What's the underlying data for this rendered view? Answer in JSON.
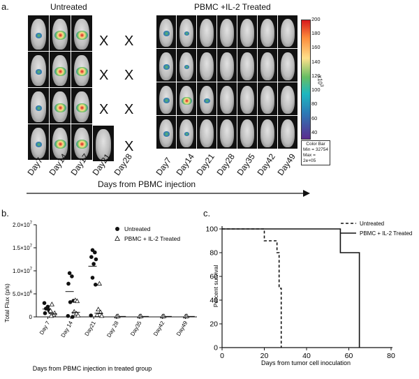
{
  "panels": {
    "a_letter": "a.",
    "b_letter": "b.",
    "c_letter": "c."
  },
  "panel_a": {
    "untreated_title": "Untreated",
    "treated_title": "PBMC +IL-2 Treated",
    "untreated_days": [
      "Day7",
      "Day14",
      "Day17",
      "Day21",
      "Day28"
    ],
    "treated_days": [
      "Day7",
      "Day14",
      "Day21",
      "Day28",
      "Day35",
      "Day42",
      "Day49"
    ],
    "x_mark": "X",
    "arrow_label": "Days from PBMC injection",
    "colorbar": {
      "ticks": [
        "200",
        "180",
        "160",
        "140",
        "120",
        "100",
        "80",
        "60",
        "40"
      ],
      "exponent": "x10",
      "exponent_power": "3",
      "legend_title": "Color Bar",
      "legend_min": "Min = 32754",
      "legend_max": "Max = 2e+05"
    }
  },
  "chart_data": [
    {
      "type": "scatter",
      "panel": "b",
      "ylabel": "Total Flux (p/s)",
      "xlabel": "Days from PBMC injection in treated group",
      "categories": [
        "Day 7",
        "Day 14",
        "Day21",
        "Day 28",
        "Day35",
        "Day42",
        "Day49"
      ],
      "yticks": [
        {
          "value": 0,
          "label": "0"
        },
        {
          "value": 5000000,
          "label": "5.0×10",
          "exp": "6"
        },
        {
          "value": 10000000,
          "label": "1.0×10",
          "exp": "7"
        },
        {
          "value": 15000000,
          "label": "1.5×10",
          "exp": "7"
        },
        {
          "value": 20000000,
          "label": "2.0×10",
          "exp": "7"
        }
      ],
      "ylim": [
        0,
        20000000
      ],
      "legend_position": "top-right",
      "series": [
        {
          "name": "Untreated",
          "marker": "filled-circle",
          "points": [
            {
              "cat": 0,
              "offset": -0.15,
              "y": 3000000
            },
            {
              "cat": 0,
              "offset": -0.08,
              "y": 1800000
            },
            {
              "cat": 0,
              "offset": 0.0,
              "y": 2200000
            },
            {
              "cat": 0,
              "offset": 0.08,
              "y": 1200000
            },
            {
              "cat": 0,
              "offset": -0.12,
              "y": 800000
            },
            {
              "cat": 0,
              "offset": 0.05,
              "y": 1500000
            },
            {
              "cat": 1,
              "offset": -0.05,
              "y": 9500000
            },
            {
              "cat": 1,
              "offset": 0.05,
              "y": 8800000
            },
            {
              "cat": 1,
              "offset": -0.1,
              "y": 7200000
            },
            {
              "cat": 1,
              "offset": 0.12,
              "y": 3500000
            },
            {
              "cat": 1,
              "offset": -0.02,
              "y": 3200000
            },
            {
              "cat": 1,
              "offset": -0.12,
              "y": 200000
            },
            {
              "cat": 1,
              "offset": 0.08,
              "y": 0
            },
            {
              "cat": 2,
              "offset": -0.05,
              "y": 14500000
            },
            {
              "cat": 2,
              "offset": 0.05,
              "y": 14000000
            },
            {
              "cat": 2,
              "offset": -0.1,
              "y": 13000000
            },
            {
              "cat": 2,
              "offset": 0.1,
              "y": 12500000
            },
            {
              "cat": 2,
              "offset": 0.0,
              "y": 11500000
            },
            {
              "cat": 2,
              "offset": -0.05,
              "y": 8500000
            },
            {
              "cat": 2,
              "offset": 0.08,
              "y": 7000000
            },
            {
              "cat": 2,
              "offset": -0.12,
              "y": 300000
            }
          ],
          "medians": [
            {
              "cat": 0,
              "y": 1700000
            },
            {
              "cat": 1,
              "y": 5500000
            },
            {
              "cat": 2,
              "y": 11000000
            }
          ]
        },
        {
          "name": "PBMC + IL-2 Treated",
          "marker": "open-triangle",
          "points": [
            {
              "cat": 0,
              "offset": 0.18,
              "y": 2700000
            },
            {
              "cat": 0,
              "offset": 0.12,
              "y": 1300000
            },
            {
              "cat": 0,
              "offset": 0.2,
              "y": 600000
            },
            {
              "cat": 0,
              "offset": 0.26,
              "y": 400000
            },
            {
              "cat": 0,
              "offset": 0.15,
              "y": 200000
            },
            {
              "cat": 0,
              "offset": 0.3,
              "y": 800000
            },
            {
              "cat": 1,
              "offset": 0.2,
              "y": 3600000
            },
            {
              "cat": 1,
              "offset": 0.28,
              "y": 3400000
            },
            {
              "cat": 1,
              "offset": 0.15,
              "y": 1100000
            },
            {
              "cat": 1,
              "offset": 0.25,
              "y": 700000
            },
            {
              "cat": 1,
              "offset": 0.32,
              "y": 300000
            },
            {
              "cat": 2,
              "offset": 0.25,
              "y": 7200000
            },
            {
              "cat": 2,
              "offset": 0.2,
              "y": 1600000
            },
            {
              "cat": 2,
              "offset": 0.3,
              "y": 1000000
            },
            {
              "cat": 2,
              "offset": 0.15,
              "y": 400000
            },
            {
              "cat": 2,
              "offset": 0.35,
              "y": 200000
            },
            {
              "cat": 3,
              "offset": 0.0,
              "y": 100000
            },
            {
              "cat": 3,
              "offset": 0.06,
              "y": 150000
            },
            {
              "cat": 4,
              "offset": 0.0,
              "y": 100000
            },
            {
              "cat": 4,
              "offset": 0.06,
              "y": 150000
            },
            {
              "cat": 5,
              "offset": 0.0,
              "y": 100000
            },
            {
              "cat": 5,
              "offset": 0.06,
              "y": 150000
            },
            {
              "cat": 6,
              "offset": 0.0,
              "y": 100000
            },
            {
              "cat": 6,
              "offset": 0.06,
              "y": 150000
            }
          ],
          "medians": [
            {
              "cat": 0,
              "y": 700000
            },
            {
              "cat": 1,
              "y": 1000000
            },
            {
              "cat": 2,
              "y": 800000
            },
            {
              "cat": 3,
              "y": 100000
            },
            {
              "cat": 4,
              "y": 100000
            },
            {
              "cat": 5,
              "y": 100000
            },
            {
              "cat": 6,
              "y": 100000
            }
          ]
        }
      ]
    },
    {
      "type": "line",
      "panel": "c",
      "ylabel": "Percent survival",
      "xlabel": "Days from tumor cell inoculation",
      "xlim": [
        0,
        80
      ],
      "ylim": [
        0,
        100
      ],
      "xticks": [
        0,
        20,
        40,
        60,
        80
      ],
      "yticks": [
        0,
        20,
        40,
        60,
        80,
        100
      ],
      "legend_position": "top-right",
      "series": [
        {
          "name": "Untreated",
          "style": "dashed",
          "steps": [
            [
              0,
              100
            ],
            [
              20,
              100
            ],
            [
              20,
              90
            ],
            [
              26,
              90
            ],
            [
              26,
              80
            ],
            [
              27,
              80
            ],
            [
              27,
              50
            ],
            [
              28,
              50
            ],
            [
              28,
              0
            ]
          ]
        },
        {
          "name": "PBMC + IL-2 Treated",
          "style": "solid",
          "steps": [
            [
              0,
              100
            ],
            [
              56,
              100
            ],
            [
              56,
              80
            ],
            [
              65,
              80
            ],
            [
              65,
              0
            ]
          ]
        }
      ]
    }
  ]
}
